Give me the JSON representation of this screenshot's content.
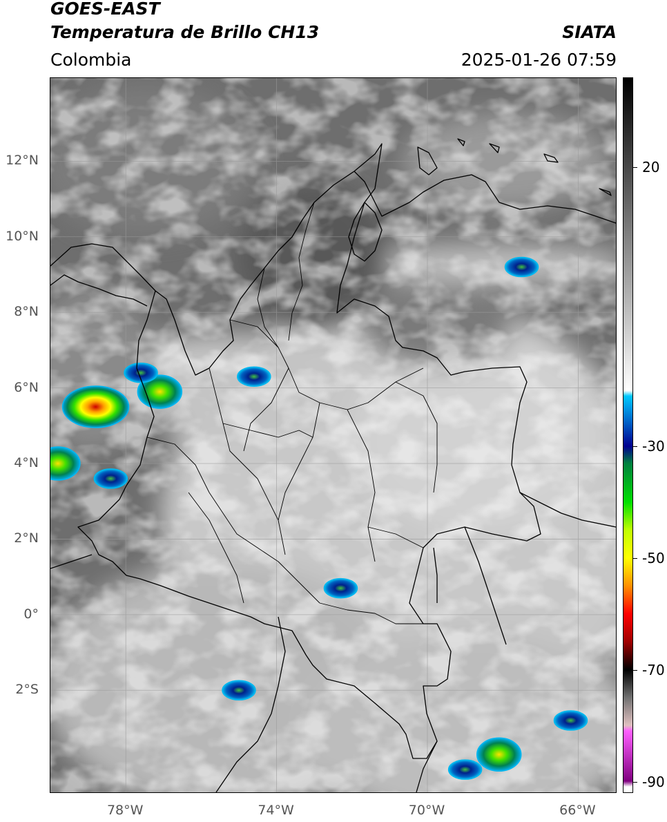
{
  "header": {
    "title_line1": "GOES-EAST",
    "title_line2": "Temperatura de Brillo CH13",
    "region": "Colombia",
    "source": "SIATA",
    "datetime": "2025-01-26 07:59"
  },
  "map": {
    "lon_range": [
      -80.0,
      -65.0
    ],
    "lat_range": [
      -4.7,
      14.2
    ],
    "grid": true,
    "lat_ticks": [
      {
        "value": 12,
        "label": "12°N"
      },
      {
        "value": 10,
        "label": "10°N"
      },
      {
        "value": 8,
        "label": "8°N"
      },
      {
        "value": 6,
        "label": "6°N"
      },
      {
        "value": 4,
        "label": "4°N"
      },
      {
        "value": 2,
        "label": "2°N"
      },
      {
        "value": 0,
        "label": "0°"
      },
      {
        "value": -2,
        "label": "2°S"
      }
    ],
    "lon_ticks": [
      {
        "value": -78,
        "label": "78°W"
      },
      {
        "value": -74,
        "label": "74°W"
      },
      {
        "value": -70,
        "label": "70°W"
      },
      {
        "value": -66,
        "label": "66°W"
      }
    ],
    "deep_convection_cells": [
      {
        "name": "cell-choco-coast",
        "lon": -78.8,
        "lat": 5.5,
        "intensity": "very-cold"
      },
      {
        "name": "cell-pacific-4n",
        "lon": -79.8,
        "lat": 4.0,
        "intensity": "cold"
      },
      {
        "name": "cell-antioquia",
        "lon": -77.1,
        "lat": 5.9,
        "intensity": "cold"
      },
      {
        "name": "cell-uraba",
        "lon": -77.6,
        "lat": 6.4,
        "intensity": "moderate"
      },
      {
        "name": "cell-magdalena-medio",
        "lon": -74.6,
        "lat": 6.3,
        "intensity": "moderate"
      },
      {
        "name": "cell-pacific-3-5n",
        "lon": -78.4,
        "lat": 3.6,
        "intensity": "moderate"
      },
      {
        "name": "cell-caqueta",
        "lon": -72.3,
        "lat": 0.7,
        "intensity": "moderate"
      },
      {
        "name": "cell-venezuela-coast",
        "lon": -67.5,
        "lat": 9.2,
        "intensity": "moderate"
      },
      {
        "name": "cell-amazon-1",
        "lon": -68.1,
        "lat": -3.7,
        "intensity": "cold"
      },
      {
        "name": "cell-amazon-2",
        "lon": -69.0,
        "lat": -4.1,
        "intensity": "moderate"
      },
      {
        "name": "cell-amazon-3",
        "lon": -66.2,
        "lat": -2.8,
        "intensity": "moderate"
      },
      {
        "name": "cell-ecuador",
        "lon": -75.0,
        "lat": -2.0,
        "intensity": "moderate"
      }
    ]
  },
  "colorbar": {
    "range": [
      -92,
      36
    ],
    "ticks": [
      {
        "value": 20,
        "label": "20"
      },
      {
        "value": -30,
        "label": "-30"
      },
      {
        "value": -50,
        "label": "-50"
      },
      {
        "value": -70,
        "label": "-70"
      },
      {
        "value": -90,
        "label": "-90"
      }
    ],
    "stops": [
      {
        "value": 36,
        "color": "#000000"
      },
      {
        "value": -20,
        "color": "#ffffff"
      },
      {
        "value": -21,
        "color": "#00c8ff"
      },
      {
        "value": -25,
        "color": "#0070d0"
      },
      {
        "value": -30,
        "color": "#000090"
      },
      {
        "value": -33,
        "color": "#008040"
      },
      {
        "value": -40,
        "color": "#00e000"
      },
      {
        "value": -45,
        "color": "#c0ff00"
      },
      {
        "value": -50,
        "color": "#ffff00"
      },
      {
        "value": -55,
        "color": "#ff9000"
      },
      {
        "value": -60,
        "color": "#ff0000"
      },
      {
        "value": -65,
        "color": "#a00000"
      },
      {
        "value": -70,
        "color": "#000000"
      },
      {
        "value": -75,
        "color": "#707070"
      },
      {
        "value": -80,
        "color": "#e0c0c0"
      },
      {
        "value": -81,
        "color": "#ff60ff"
      },
      {
        "value": -90,
        "color": "#800080"
      },
      {
        "value": -91,
        "color": "#ffffff"
      }
    ]
  }
}
